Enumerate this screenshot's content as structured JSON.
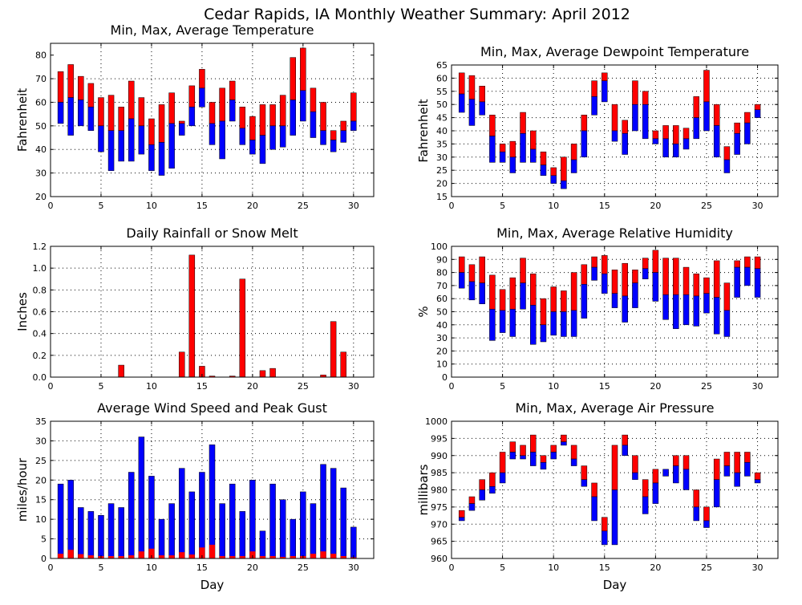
{
  "title": "Cedar Rapids, IA Monthly Weather Summary: April 2012",
  "chart_data": [
    {
      "id": "temp",
      "type": "bar",
      "subtype": "floating-range",
      "title": "Min, Max, Average Temperature",
      "xlabel": "",
      "ylabel": "Fahrenheit",
      "ylim": [
        20,
        85
      ],
      "xlim": [
        0,
        32
      ],
      "yticks": [
        20,
        30,
        40,
        50,
        60,
        70,
        80
      ],
      "xticks": [
        0,
        5,
        10,
        15,
        20,
        25,
        30
      ],
      "grid": true,
      "colors": {
        "upper": "#ff0000",
        "lower": "#0000ff"
      },
      "x": [
        1,
        2,
        3,
        4,
        5,
        6,
        7,
        8,
        9,
        10,
        11,
        12,
        13,
        14,
        15,
        16,
        17,
        18,
        19,
        20,
        21,
        22,
        23,
        24,
        25,
        26,
        27,
        28,
        29,
        30
      ],
      "min": [
        51,
        46,
        50,
        48,
        39,
        31,
        35,
        35,
        38,
        31,
        29,
        32,
        46,
        50,
        58,
        42,
        36,
        52,
        42,
        38,
        34,
        40,
        41,
        46,
        52,
        45,
        42,
        39,
        43,
        48
      ],
      "avg": [
        60,
        62,
        61,
        58,
        50,
        48,
        48,
        53,
        50,
        42,
        43,
        51,
        51,
        58,
        66,
        51,
        52,
        61,
        49,
        44,
        46,
        50,
        50,
        61,
        65,
        56,
        48,
        44,
        48,
        52
      ],
      "max": [
        73,
        76,
        71,
        68,
        62,
        63,
        58,
        69,
        62,
        53,
        59,
        64,
        52,
        67,
        74,
        60,
        66,
        69,
        58,
        54,
        59,
        59,
        63,
        79,
        83,
        66,
        60,
        48,
        52,
        64
      ]
    },
    {
      "id": "dewpoint",
      "type": "bar",
      "subtype": "floating-range",
      "title": "Min, Max, Average Dewpoint Temperature",
      "xlabel": "",
      "ylabel": "Fahrenheit",
      "ylim": [
        15,
        65
      ],
      "xlim": [
        0,
        32
      ],
      "yticks": [
        15,
        20,
        25,
        30,
        35,
        40,
        45,
        50,
        55,
        60,
        65
      ],
      "xticks": [
        0,
        5,
        10,
        15,
        20,
        25,
        30
      ],
      "grid": true,
      "colors": {
        "upper": "#ff0000",
        "lower": "#0000ff"
      },
      "x": [
        1,
        2,
        3,
        4,
        5,
        6,
        7,
        8,
        9,
        10,
        11,
        12,
        13,
        14,
        15,
        16,
        17,
        18,
        19,
        20,
        21,
        22,
        23,
        24,
        25,
        26,
        27,
        28,
        29,
        30
      ],
      "min": [
        47,
        42,
        46,
        28,
        28,
        24,
        28,
        28,
        23,
        20,
        18,
        24,
        30,
        46,
        51,
        36,
        31,
        40,
        37,
        35,
        30,
        30,
        33,
        37,
        40,
        30,
        24,
        31,
        35,
        45
      ],
      "avg": [
        54,
        52,
        51,
        38,
        32,
        30,
        39,
        33,
        27,
        23,
        21,
        29,
        40,
        53,
        59,
        40,
        39,
        50,
        50,
        37,
        37,
        35,
        37,
        45,
        51,
        42,
        29,
        39,
        43,
        48
      ],
      "max": [
        62,
        61,
        57,
        46,
        35,
        36,
        47,
        40,
        32,
        26,
        30,
        35,
        46,
        59,
        62,
        50,
        44,
        59,
        55,
        40,
        42,
        42,
        41,
        53,
        63,
        50,
        34,
        43,
        47,
        50
      ]
    },
    {
      "id": "rain",
      "type": "bar",
      "title": "Daily Rainfall or Snow Melt",
      "xlabel": "",
      "ylabel": "Inches",
      "ylim": [
        0,
        1.2
      ],
      "xlim": [
        0,
        32
      ],
      "yticks": [
        0.0,
        0.2,
        0.4,
        0.6,
        0.8,
        1.0,
        1.2
      ],
      "ytick_labels": [
        "0.0",
        "0.2",
        "0.4",
        "0.6",
        "0.8",
        "1.0",
        "1.2"
      ],
      "xticks": [
        0,
        5,
        10,
        15,
        20,
        25,
        30
      ],
      "grid": true,
      "colors": {
        "bar": "#ff0000"
      },
      "x": [
        1,
        2,
        3,
        4,
        5,
        6,
        7,
        8,
        9,
        10,
        11,
        12,
        13,
        14,
        15,
        16,
        17,
        18,
        19,
        20,
        21,
        22,
        23,
        24,
        25,
        26,
        27,
        28,
        29,
        30
      ],
      "values": [
        0,
        0,
        0,
        0,
        0,
        0,
        0.11,
        0,
        0,
        0,
        0,
        0,
        0.23,
        1.12,
        0.1,
        0.01,
        0,
        0.01,
        0.9,
        0,
        0.06,
        0.08,
        0,
        0,
        0,
        0,
        0.02,
        0.51,
        0.23,
        0
      ]
    },
    {
      "id": "humidity",
      "type": "bar",
      "subtype": "floating-range",
      "title": "Min, Max, Average Relative Humidity",
      "xlabel": "",
      "ylabel": "%",
      "ylim": [
        0,
        100
      ],
      "xlim": [
        0,
        32
      ],
      "yticks": [
        0,
        10,
        20,
        30,
        40,
        50,
        60,
        70,
        80,
        90,
        100
      ],
      "xticks": [
        0,
        5,
        10,
        15,
        20,
        25,
        30
      ],
      "grid": true,
      "colors": {
        "upper": "#ff0000",
        "lower": "#0000ff"
      },
      "x": [
        1,
        2,
        3,
        4,
        5,
        6,
        7,
        8,
        9,
        10,
        11,
        12,
        13,
        14,
        15,
        16,
        17,
        18,
        19,
        20,
        21,
        22,
        23,
        24,
        25,
        26,
        27,
        28,
        29,
        30
      ],
      "min": [
        68,
        59,
        56,
        28,
        34,
        31,
        52,
        25,
        27,
        32,
        31,
        31,
        45,
        74,
        64,
        53,
        42,
        53,
        75,
        58,
        44,
        37,
        40,
        39,
        49,
        33,
        31,
        61,
        70,
        61
      ],
      "avg": [
        80,
        73,
        72,
        52,
        51,
        52,
        72,
        55,
        40,
        50,
        50,
        51,
        71,
        84,
        79,
        64,
        62,
        72,
        83,
        80,
        63,
        63,
        63,
        62,
        64,
        61,
        51,
        84,
        84,
        83
      ],
      "max": [
        92,
        86,
        92,
        78,
        67,
        76,
        91,
        79,
        60,
        69,
        66,
        80,
        86,
        92,
        93,
        82,
        87,
        82,
        91,
        97,
        91,
        91,
        84,
        79,
        76,
        89,
        72,
        89,
        92,
        92
      ]
    },
    {
      "id": "wind",
      "type": "bar",
      "subtype": "overlay",
      "title": "Average Wind Speed and Peak Gust",
      "xlabel": "Day",
      "ylabel": "miles/hour",
      "ylim": [
        0,
        35
      ],
      "xlim": [
        0,
        32
      ],
      "yticks": [
        0,
        5,
        10,
        15,
        20,
        25,
        30,
        35
      ],
      "xticks": [
        0,
        5,
        10,
        15,
        20,
        25,
        30
      ],
      "grid": true,
      "colors": {
        "gust": "#0000ff",
        "avg": "#ff0000"
      },
      "x": [
        1,
        2,
        3,
        4,
        5,
        6,
        7,
        8,
        9,
        10,
        11,
        12,
        13,
        14,
        15,
        16,
        17,
        18,
        19,
        20,
        21,
        22,
        23,
        24,
        25,
        26,
        27,
        28,
        29,
        30
      ],
      "gust": [
        19,
        20,
        13,
        12,
        11,
        14,
        13,
        22,
        31,
        21,
        10,
        14,
        23,
        17,
        22,
        29,
        14,
        19,
        12,
        20,
        7,
        19,
        15,
        10,
        17,
        14,
        24,
        23,
        18,
        8
      ],
      "avg": [
        1.2,
        2.2,
        1.1,
        0.8,
        0.6,
        0.6,
        0.6,
        0.8,
        1.8,
        2.5,
        0.8,
        0.8,
        1.6,
        1.0,
        2.8,
        3.5,
        0.6,
        0.6,
        0.6,
        1.8,
        0.6,
        0.6,
        0.4,
        0.6,
        0.6,
        1.2,
        1.8,
        1.2,
        0.6,
        0.3
      ]
    },
    {
      "id": "pressure",
      "type": "bar",
      "subtype": "floating-range",
      "title": "Min, Max, Average Air Pressure",
      "xlabel": "Day",
      "ylabel": "millibars",
      "ylim": [
        960,
        1000
      ],
      "xlim": [
        0,
        32
      ],
      "yticks": [
        960,
        965,
        970,
        975,
        980,
        985,
        990,
        995,
        1000
      ],
      "xticks": [
        0,
        5,
        10,
        15,
        20,
        25,
        30
      ],
      "grid": true,
      "colors": {
        "upper": "#ff0000",
        "lower": "#0000ff"
      },
      "x": [
        1,
        2,
        3,
        4,
        5,
        6,
        7,
        8,
        9,
        10,
        11,
        12,
        13,
        14,
        15,
        16,
        17,
        18,
        19,
        20,
        21,
        22,
        23,
        24,
        25,
        26,
        27,
        28,
        29,
        30
      ],
      "min": [
        971,
        974,
        977,
        979,
        982,
        989,
        989,
        987,
        986,
        989,
        993,
        987,
        981,
        971,
        964,
        964,
        990,
        983,
        973,
        976,
        984,
        982,
        980,
        971,
        969,
        975,
        984,
        981,
        984,
        982
      ],
      "avg": [
        972,
        976,
        980,
        981,
        985,
        991,
        990,
        991,
        988,
        991,
        994,
        989,
        983,
        978,
        968,
        980,
        993,
        985,
        978,
        982,
        986,
        987,
        986,
        975,
        971,
        983,
        987,
        985,
        988,
        983
      ],
      "max": [
        974,
        978,
        983,
        985,
        991,
        994,
        993,
        996,
        990,
        993,
        996,
        993,
        987,
        982,
        972,
        993,
        996,
        990,
        983,
        986,
        986,
        990,
        990,
        980,
        975,
        989,
        991,
        991,
        991,
        985
      ]
    }
  ]
}
